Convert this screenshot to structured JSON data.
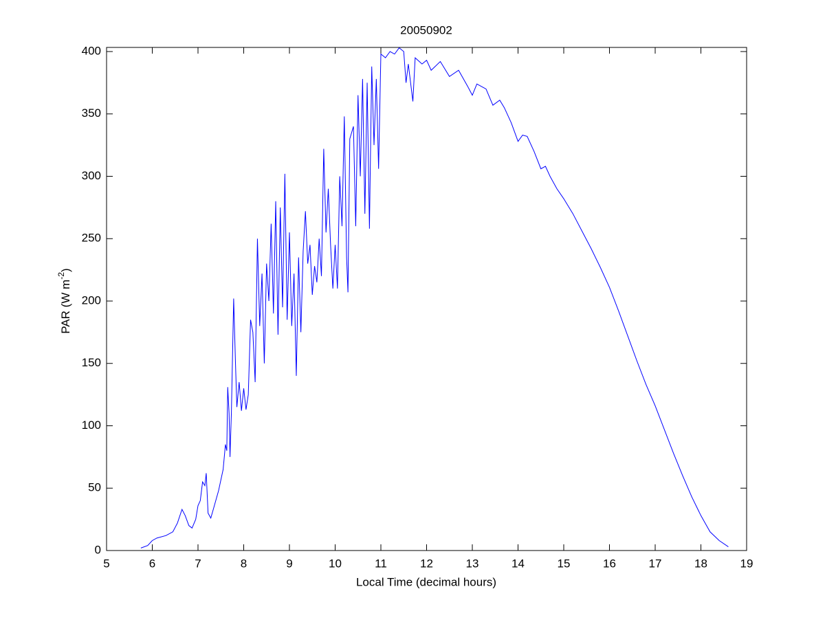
{
  "chart_data": {
    "type": "line",
    "title": "20050902",
    "xlabel": "Local Time (decimal hours)",
    "ylabel": [
      "PAR (W m",
      "-2",
      ")"
    ],
    "xlim": [
      5,
      19
    ],
    "ylim": [
      0,
      400
    ],
    "xticks": [
      5,
      6,
      7,
      8,
      9,
      10,
      11,
      12,
      13,
      14,
      15,
      16,
      17,
      18,
      19
    ],
    "yticks": [
      0,
      50,
      100,
      150,
      200,
      250,
      300,
      350,
      400
    ],
    "grid": false,
    "series": [
      {
        "color": "#0000ff",
        "x": [
          5.75,
          5.9,
          6.0,
          6.1,
          6.3,
          6.45,
          6.55,
          6.65,
          6.72,
          6.8,
          6.87,
          6.95,
          7.0,
          7.05,
          7.1,
          7.15,
          7.18,
          7.22,
          7.28,
          7.35,
          7.45,
          7.55,
          7.6,
          7.63,
          7.65,
          7.68,
          7.7,
          7.73,
          7.78,
          7.82,
          7.85,
          7.9,
          7.95,
          8.0,
          8.05,
          8.1,
          8.15,
          8.2,
          8.25,
          8.3,
          8.35,
          8.4,
          8.45,
          8.5,
          8.55,
          8.6,
          8.65,
          8.7,
          8.75,
          8.8,
          8.85,
          8.9,
          8.95,
          9.0,
          9.05,
          9.1,
          9.15,
          9.2,
          9.25,
          9.3,
          9.35,
          9.4,
          9.45,
          9.5,
          9.55,
          9.6,
          9.65,
          9.7,
          9.75,
          9.8,
          9.85,
          9.9,
          9.95,
          10.0,
          10.05,
          10.1,
          10.15,
          10.2,
          10.25,
          10.28,
          10.32,
          10.4,
          10.45,
          10.5,
          10.55,
          10.6,
          10.65,
          10.7,
          10.75,
          10.8,
          10.85,
          10.9,
          10.95,
          11.0,
          11.1,
          11.2,
          11.3,
          11.4,
          11.5,
          11.55,
          11.6,
          11.7,
          11.75,
          11.9,
          12.0,
          12.1,
          12.3,
          12.5,
          12.7,
          12.9,
          13.0,
          13.1,
          13.3,
          13.45,
          13.6,
          13.7,
          13.85,
          14.0,
          14.1,
          14.2,
          14.35,
          14.5,
          14.6,
          14.7,
          14.85,
          15.0,
          15.2,
          15.4,
          15.6,
          15.8,
          16.0,
          16.2,
          16.4,
          16.6,
          16.8,
          17.0,
          17.2,
          17.4,
          17.6,
          17.8,
          18.0,
          18.2,
          18.4,
          18.6
        ],
        "values": [
          2,
          4,
          8,
          10,
          12,
          15,
          22,
          33,
          28,
          20,
          18,
          25,
          36,
          40,
          55,
          52,
          62,
          30,
          26,
          35,
          48,
          65,
          85,
          80,
          131,
          110,
          75,
          110,
          202,
          150,
          115,
          135,
          112,
          130,
          113,
          125,
          185,
          175,
          135,
          250,
          180,
          222,
          150,
          230,
          200,
          262,
          190,
          280,
          173,
          275,
          195,
          302,
          185,
          255,
          180,
          222,
          140,
          235,
          175,
          240,
          272,
          230,
          245,
          205,
          228,
          215,
          250,
          220,
          322,
          255,
          290,
          245,
          210,
          245,
          210,
          300,
          260,
          348,
          235,
          207,
          330,
          340,
          260,
          365,
          300,
          378,
          270,
          375,
          258,
          388,
          325,
          378,
          306,
          398,
          395,
          400,
          398,
          403,
          400,
          375,
          390,
          360,
          395,
          390,
          393,
          385,
          392,
          380,
          385,
          372,
          365,
          374,
          370,
          357,
          361,
          355,
          343,
          328,
          333,
          332,
          320,
          306,
          308,
          300,
          290,
          282,
          270,
          256,
          242,
          227,
          211,
          192,
          172,
          152,
          133,
          116,
          97,
          78,
          60,
          43,
          28,
          15,
          8,
          3
        ]
      }
    ]
  }
}
